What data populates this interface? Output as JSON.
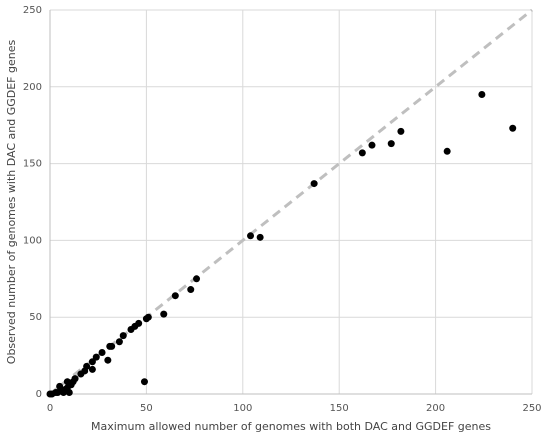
{
  "chart_data": {
    "type": "scatter",
    "x_label": "Maximum allowed number of genomes with both DAC and GGDEF genes",
    "y_label": "Observed number of genomes with DAC and GGDEF genes",
    "xlim": [
      0,
      250
    ],
    "ylim": [
      0,
      250
    ],
    "xticks": [
      0,
      50,
      100,
      150,
      200,
      250
    ],
    "yticks": [
      0,
      50,
      100,
      150,
      200,
      250
    ],
    "grid": true,
    "diagonal": true,
    "diagonal_color": "#bfbfbf",
    "series": [
      {
        "color": "#000000",
        "x": [
          240,
          224,
          206,
          182,
          177,
          167,
          162,
          137,
          104,
          109,
          76,
          73,
          65,
          59,
          51,
          50,
          49,
          46,
          44,
          42,
          38,
          36,
          32,
          31,
          30,
          27,
          24,
          22,
          22,
          19,
          18,
          16,
          13,
          12,
          11,
          9,
          8,
          6,
          4,
          3,
          1,
          0,
          7,
          10,
          5,
          9
        ],
        "values": [
          173,
          195,
          158,
          171,
          163,
          162,
          157,
          137,
          103,
          102,
          75,
          68,
          64,
          52,
          50,
          49,
          8,
          46,
          44,
          42,
          38,
          34,
          31,
          31,
          22,
          27,
          24,
          21,
          16,
          18,
          15,
          13,
          10,
          8,
          6,
          4,
          3,
          2,
          1,
          1,
          0,
          0,
          1,
          1,
          5,
          8
        ]
      }
    ]
  }
}
